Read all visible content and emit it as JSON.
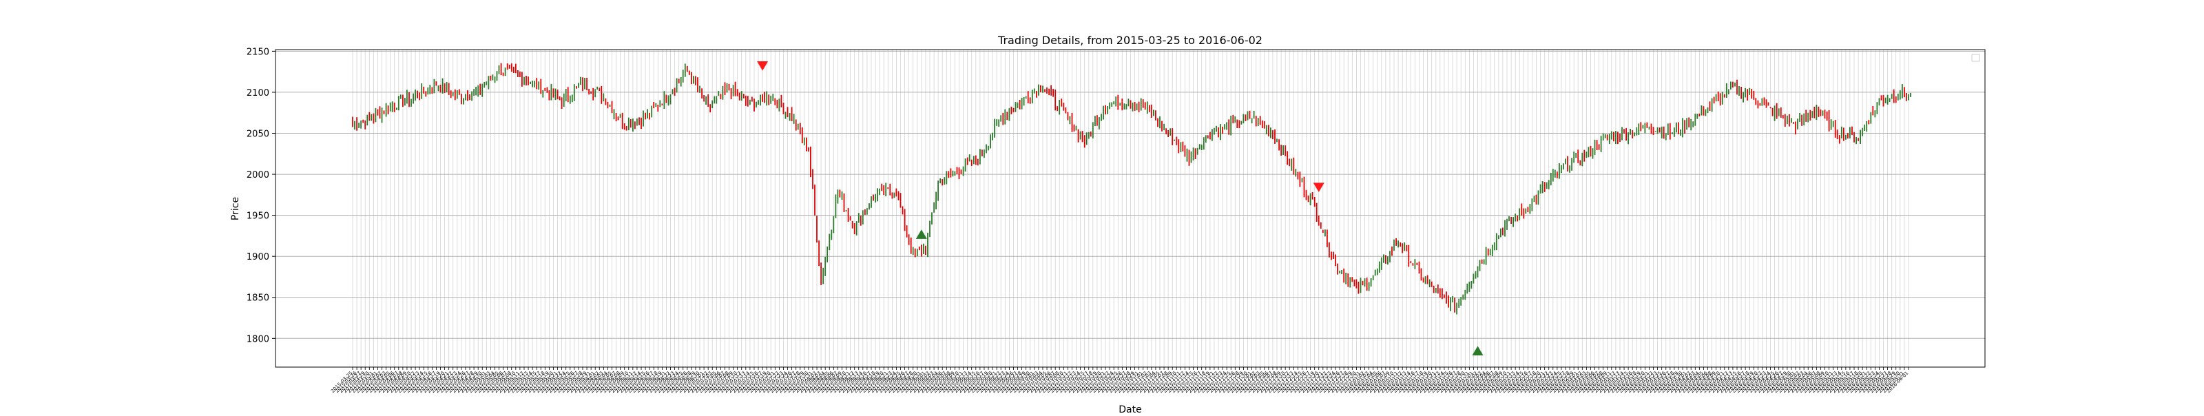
{
  "chart_data": {
    "type": "candlestick",
    "title": "Trading Details, from 2015-03-25 to 2016-06-02",
    "xlabel": "Date",
    "ylabel": "Price",
    "date_range": [
      "2015-03-25",
      "2016-06-02"
    ],
    "ylim": [
      1765,
      2152
    ],
    "yticks": [
      1800,
      1850,
      1900,
      1950,
      2000,
      2050,
      2100,
      2150
    ],
    "grid": true,
    "legend": {
      "placement": "top-right",
      "entries": []
    },
    "colors": {
      "up": "#2a7a2a",
      "down": "#e00000",
      "buy_marker": "#2a7a2a",
      "sell_marker": "#ff1a1a",
      "grid": "#b0b0b0"
    },
    "close_anchors": [
      [
        0,
        2060
      ],
      [
        10,
        2070
      ],
      [
        20,
        2085
      ],
      [
        30,
        2095
      ],
      [
        40,
        2110
      ],
      [
        50,
        2095
      ],
      [
        60,
        2100
      ],
      [
        70,
        2128
      ],
      [
        80,
        2120
      ],
      [
        90,
        2105
      ],
      [
        100,
        2090
      ],
      [
        110,
        2110
      ],
      [
        120,
        2095
      ],
      [
        130,
        2060
      ],
      [
        140,
        2070
      ],
      [
        150,
        2095
      ],
      [
        160,
        2128
      ],
      [
        170,
        2080
      ],
      [
        180,
        2105
      ],
      [
        190,
        2085
      ],
      [
        200,
        2095
      ],
      [
        210,
        2070
      ],
      [
        218,
        2030
      ],
      [
        224,
        1870
      ],
      [
        232,
        1980
      ],
      [
        240,
        1935
      ],
      [
        250,
        1975
      ],
      [
        260,
        1980
      ],
      [
        268,
        1900
      ],
      [
        274,
        1910
      ],
      [
        280,
        1990
      ],
      [
        290,
        2005
      ],
      [
        300,
        2020
      ],
      [
        310,
        2070
      ],
      [
        320,
        2090
      ],
      [
        330,
        2108
      ],
      [
        340,
        2075
      ],
      [
        350,
        2040
      ],
      [
        360,
        2085
      ],
      [
        370,
        2090
      ],
      [
        380,
        2080
      ],
      [
        390,
        2050
      ],
      [
        400,
        2020
      ],
      [
        410,
        2050
      ],
      [
        420,
        2060
      ],
      [
        430,
        2070
      ],
      [
        440,
        2050
      ],
      [
        450,
        2005
      ],
      [
        460,
        1960
      ],
      [
        470,
        1890
      ],
      [
        480,
        1860
      ],
      [
        490,
        1880
      ],
      [
        500,
        1920
      ],
      [
        510,
        1880
      ],
      [
        520,
        1850
      ],
      [
        528,
        1840
      ],
      [
        534,
        1870
      ],
      [
        540,
        1895
      ],
      [
        550,
        1935
      ],
      [
        560,
        1955
      ],
      [
        570,
        1985
      ],
      [
        580,
        2010
      ],
      [
        590,
        2025
      ],
      [
        600,
        2045
      ],
      [
        610,
        2050
      ],
      [
        620,
        2060
      ],
      [
        630,
        2050
      ],
      [
        640,
        2065
      ],
      [
        650,
        2085
      ],
      [
        660,
        2105
      ],
      [
        670,
        2095
      ],
      [
        680,
        2075
      ],
      [
        690,
        2060
      ],
      [
        700,
        2080
      ],
      [
        710,
        2050
      ],
      [
        720,
        2045
      ],
      [
        730,
        2090
      ],
      [
        740,
        2100
      ],
      [
        745,
        2095
      ]
    ],
    "n_candles": 746,
    "markers": [
      {
        "type": "sell",
        "date_index": 196,
        "price": 2133
      },
      {
        "type": "buy",
        "date_index": 272,
        "price": 1926
      },
      {
        "type": "sell",
        "date_index": 462,
        "price": 1985
      },
      {
        "type": "buy",
        "date_index": 538,
        "price": 1784
      }
    ]
  }
}
